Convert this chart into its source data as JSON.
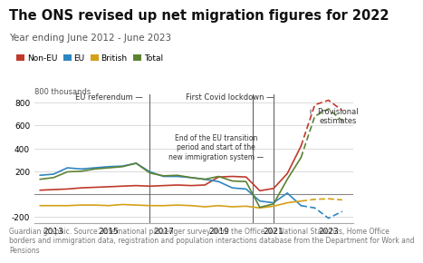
{
  "title": "The ONS revised up net migration figures for 2022",
  "subtitle": "Year ending June 2012 - June 2023",
  "source": "Guardian graphic. Source: International passenger survey from the Office for National Statistics, Home Office borders and immigration data, registration and population interactions database from the Department for Work and Pensions",
  "legend": [
    "Non-EU",
    "EU",
    "British",
    "Total"
  ],
  "legend_colors": [
    "#c0392b",
    "#2e86c1",
    "#d4a017",
    "#5d8233"
  ],
  "colors": {
    "non_eu": "#c0392b",
    "eu": "#2e86c1",
    "british": "#d4a017",
    "total": "#5d8233"
  },
  "years": [
    2012.5,
    2013.0,
    2013.5,
    2014.0,
    2014.5,
    2015.0,
    2015.5,
    2016.0,
    2016.5,
    2017.0,
    2017.5,
    2018.0,
    2018.5,
    2019.0,
    2019.5,
    2020.0,
    2020.5,
    2021.0,
    2021.5,
    2022.0,
    2022.5,
    2023.0,
    2023.5
  ],
  "non_eu": [
    35,
    40,
    45,
    55,
    60,
    65,
    70,
    75,
    70,
    75,
    80,
    75,
    80,
    150,
    155,
    150,
    30,
    50,
    180,
    420,
    780,
    820,
    730
  ],
  "eu": [
    165,
    175,
    230,
    220,
    230,
    240,
    245,
    270,
    195,
    155,
    155,
    145,
    130,
    110,
    55,
    45,
    -60,
    -75,
    10,
    -100,
    -120,
    -210,
    -150
  ],
  "british": [
    -100,
    -100,
    -100,
    -95,
    -95,
    -100,
    -90,
    -95,
    -100,
    -100,
    -95,
    -100,
    -110,
    -100,
    -110,
    -105,
    -120,
    -105,
    -75,
    -60,
    -45,
    -40,
    -50
  ],
  "total": [
    130,
    145,
    195,
    200,
    220,
    230,
    240,
    270,
    185,
    160,
    165,
    145,
    130,
    155,
    115,
    110,
    -115,
    -85,
    130,
    320,
    680,
    745,
    640
  ],
  "prov_idx": 19,
  "eu_referendum_x": 2016.5,
  "covid_x": 2020.25,
  "eu_transition_x": 2021.0,
  "ylim": [
    -250,
    870
  ],
  "yticks": [
    -200,
    0,
    200,
    400,
    600,
    800
  ],
  "xlim": [
    2012.3,
    2023.9
  ],
  "bg_color": "#ffffff",
  "grid_color": "#cccccc",
  "title_fontsize": 10.5,
  "subtitle_fontsize": 7.5,
  "source_fontsize": 6.0
}
